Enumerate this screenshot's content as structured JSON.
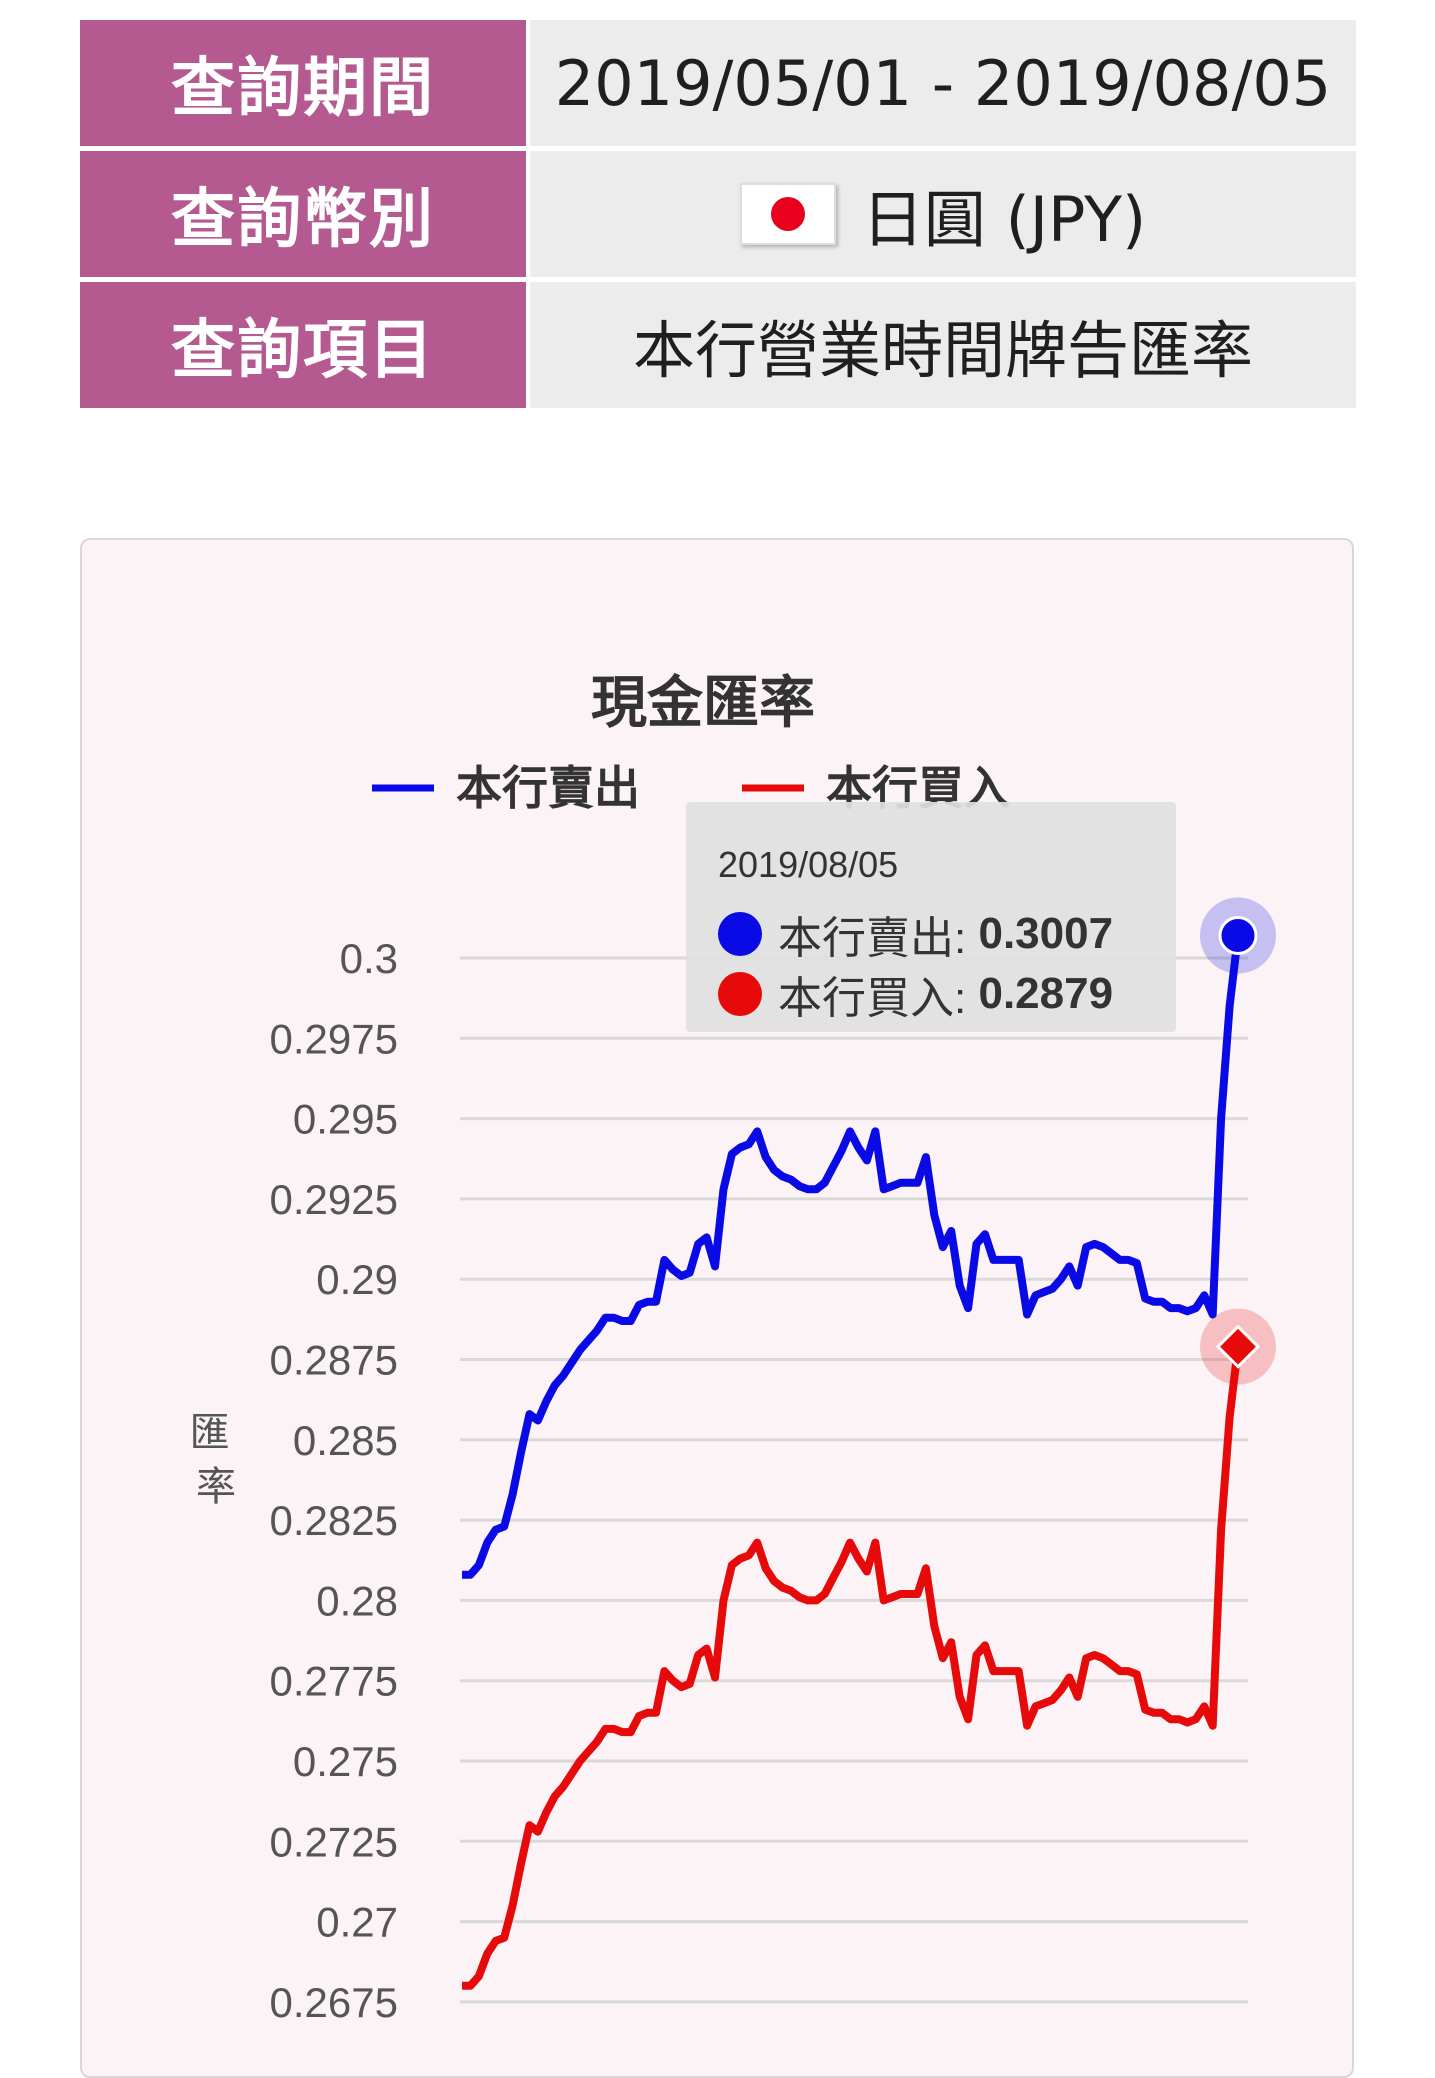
{
  "query": {
    "period_label": "查詢期間",
    "period_value": "2019/05/01 - 2019/08/05",
    "currency_label": "查詢幣別",
    "currency_value": "日圓 (JPY)",
    "item_label": "查詢項目",
    "item_value": "本行營業時間牌告匯率"
  },
  "colors": {
    "sell": "#0a0ae6",
    "buy": "#e60a0a",
    "label_bg": "#b55a91"
  },
  "icons": {
    "currency_flag": "japan-flag-icon"
  },
  "tooltip": {
    "date": "2019/08/05",
    "sell_label": "本行賣出:",
    "sell_value": "0.3007",
    "buy_label": "本行買入:",
    "buy_value": "0.2879"
  },
  "chart_data": {
    "type": "line",
    "title": "現金匯率",
    "ylabel": "匯率",
    "xlabel": "",
    "ylim": [
      0.2665,
      0.3015
    ],
    "y_ticks": [
      "0.3",
      "0.2975",
      "0.295",
      "0.2925",
      "0.29",
      "0.2875",
      "0.285",
      "0.2825",
      "0.28",
      "0.2775",
      "0.275",
      "0.2725",
      "0.27",
      "0.2675"
    ],
    "legend": "top",
    "grid": true,
    "series": [
      {
        "name": "本行賣出",
        "values": [
          0.2808,
          0.2808,
          0.2811,
          0.2818,
          0.2822,
          0.2823,
          0.2833,
          0.2846,
          0.2858,
          0.2856,
          0.2862,
          0.2867,
          0.287,
          0.2874,
          0.2878,
          0.2881,
          0.2884,
          0.2888,
          0.2888,
          0.2887,
          0.2887,
          0.2892,
          0.2893,
          0.2893,
          0.2906,
          0.2903,
          0.2901,
          0.2902,
          0.2911,
          0.2913,
          0.2904,
          0.2928,
          0.2939,
          0.2941,
          0.2942,
          0.2946,
          0.2938,
          0.2934,
          0.2932,
          0.2931,
          0.2929,
          0.2928,
          0.2928,
          0.293,
          0.2935,
          0.294,
          0.2946,
          0.2941,
          0.2937,
          0.2946,
          0.2928,
          0.2929,
          0.293,
          0.293,
          0.293,
          0.2938,
          0.292,
          0.291,
          0.2915,
          0.2898,
          0.2891,
          0.2911,
          0.2914,
          0.2906,
          0.2906,
          0.2906,
          0.2906,
          0.2889,
          0.2895,
          0.2896,
          0.2897,
          0.29,
          0.2904,
          0.2898,
          0.291,
          0.2911,
          0.291,
          0.2908,
          0.2906,
          0.2906,
          0.2905,
          0.2894,
          0.2893,
          0.2893,
          0.2891,
          0.2891,
          0.289,
          0.2891,
          0.2895,
          0.2889,
          0.295,
          0.2985,
          0.3007
        ],
        "color": "#0a0ae6"
      },
      {
        "name": "本行買入",
        "values": [
          0.268,
          0.268,
          0.2683,
          0.269,
          0.2694,
          0.2695,
          0.2705,
          0.2718,
          0.273,
          0.2728,
          0.2734,
          0.2739,
          0.2742,
          0.2746,
          0.275,
          0.2753,
          0.2756,
          0.276,
          0.276,
          0.2759,
          0.2759,
          0.2764,
          0.2765,
          0.2765,
          0.2778,
          0.2775,
          0.2773,
          0.2774,
          0.2783,
          0.2785,
          0.2776,
          0.28,
          0.2811,
          0.2813,
          0.2814,
          0.2818,
          0.281,
          0.2806,
          0.2804,
          0.2803,
          0.2801,
          0.28,
          0.28,
          0.2802,
          0.2807,
          0.2812,
          0.2818,
          0.2813,
          0.2809,
          0.2818,
          0.28,
          0.2801,
          0.2802,
          0.2802,
          0.2802,
          0.281,
          0.2792,
          0.2782,
          0.2787,
          0.277,
          0.2763,
          0.2783,
          0.2786,
          0.2778,
          0.2778,
          0.2778,
          0.2778,
          0.2761,
          0.2767,
          0.2768,
          0.2769,
          0.2772,
          0.2776,
          0.277,
          0.2782,
          0.2783,
          0.2782,
          0.278,
          0.2778,
          0.2778,
          0.2777,
          0.2766,
          0.2765,
          0.2765,
          0.2763,
          0.2763,
          0.2762,
          0.2763,
          0.2767,
          0.2761,
          0.2822,
          0.2857,
          0.2879
        ],
        "color": "#e60a0a"
      }
    ]
  }
}
